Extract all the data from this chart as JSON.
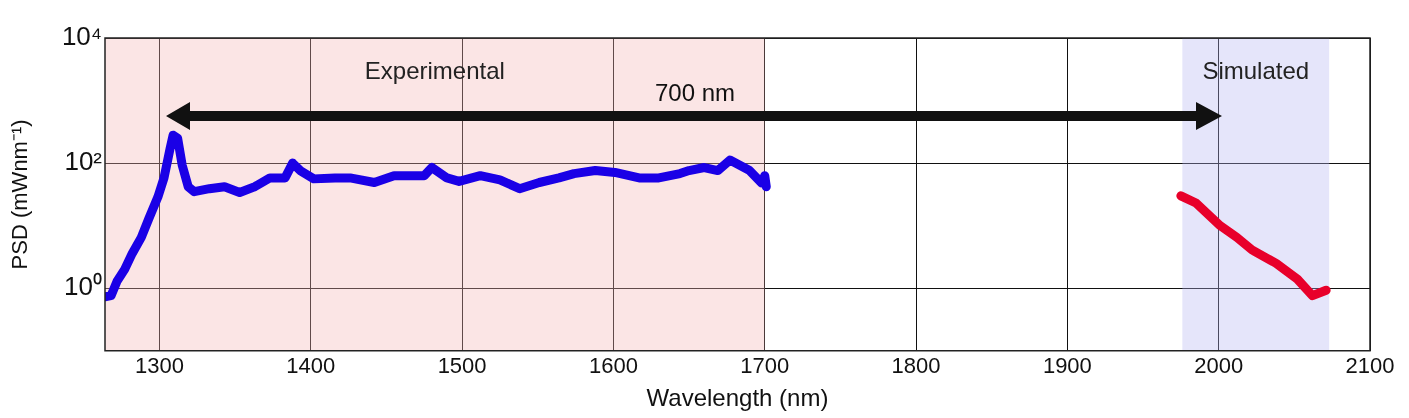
{
  "chart_data": {
    "type": "line",
    "xlabel": "Wavelength (nm)",
    "ylabel": "PSD (mWnm⁻¹)",
    "xlim": [
      1264,
      2100
    ],
    "xticks": [
      1300,
      1400,
      1500,
      1600,
      1700,
      1800,
      1900,
      2000,
      2100
    ],
    "ylim": [
      0.1,
      10000
    ],
    "yticks": [
      {
        "value": 1,
        "label": "10⁰"
      },
      {
        "value": 100,
        "label": "10²"
      },
      {
        "value": 10000,
        "label": "10⁴"
      }
    ],
    "log": "y",
    "grid": true,
    "legend": false,
    "marker": "none",
    "line_style": "solid",
    "series": [
      {
        "color": "#1a00e6",
        "x": [
          1264,
          1268,
          1272,
          1277,
          1282,
          1288,
          1293,
          1299,
          1303,
          1307,
          1309,
          1312,
          1315,
          1319,
          1323,
          1333,
          1343,
          1353,
          1363,
          1373,
          1383,
          1388,
          1393,
          1402,
          1416,
          1426,
          1442,
          1455,
          1475,
          1480,
          1490,
          1498,
          1512,
          1525,
          1538,
          1551,
          1564,
          1574,
          1588,
          1601,
          1617,
          1630,
          1644,
          1650,
          1660,
          1669,
          1677,
          1690,
          1698,
          1700,
          1701
        ],
        "values": [
          0.73,
          0.76,
          1.3,
          2.0,
          3.6,
          6.5,
          13,
          29,
          58,
          170,
          280,
          250,
          93,
          42,
          35,
          39,
          42,
          34,
          42,
          58,
          58,
          100,
          76,
          56,
          58,
          58,
          49,
          63,
          63,
          85,
          58,
          51,
          63,
          54,
          39,
          49,
          58,
          68,
          76,
          71,
          58,
          58,
          68,
          76,
          85,
          76,
          112,
          76,
          48,
          63,
          42
        ]
      },
      {
        "color": "#e8002a",
        "x": [
          1975,
          1985,
          2001,
          2012,
          2022,
          2038,
          2052,
          2062,
          2071
        ],
        "values": [
          30,
          23,
          10,
          6.5,
          4.1,
          2.5,
          1.4,
          0.76,
          0.93
        ]
      }
    ],
    "bands": [
      {
        "axis": "x",
        "from": 1264,
        "to": 1700,
        "label": "Experimental",
        "color": "#f4b4b4"
      },
      {
        "axis": "x",
        "from": 1976,
        "to": 2073,
        "label": "Simulated",
        "color": "#b4b4f0"
      }
    ],
    "annotations": [
      "700 nm"
    ]
  }
}
